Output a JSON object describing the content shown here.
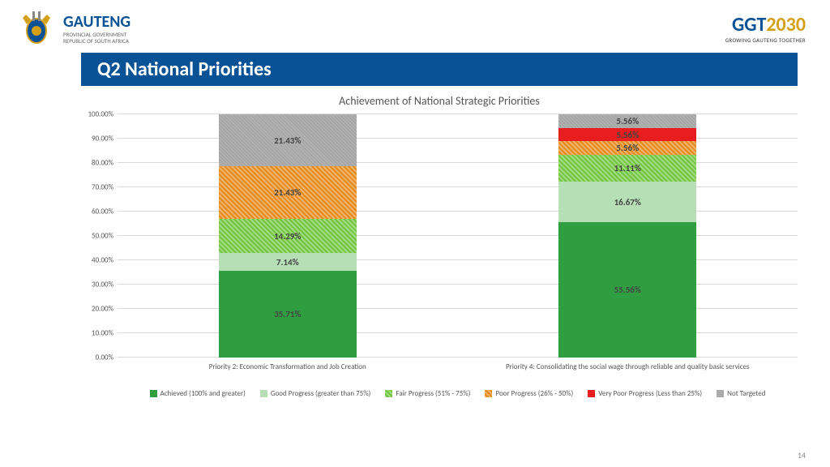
{
  "header": {
    "gauteng": "GAUTENG",
    "gauteng_sub1": "PROVINCIAL GOVERNMENT",
    "gauteng_sub2": "REPUBLIC OF SOUTH AFRICA",
    "ggt_prefix": "GGT",
    "ggt_year": "2030",
    "ggt_sub": "GROWING GAUTENG TOGETHER"
  },
  "title": "Q2 National Priorities",
  "chart": {
    "title": "Achievement of National Strategic Priorities",
    "type": "stacked-bar",
    "ylim": [
      0,
      100
    ],
    "ytick_step": 10,
    "yticks": [
      "0.00%",
      "10.00%",
      "20.00%",
      "30.00%",
      "40.00%",
      "50.00%",
      "60.00%",
      "70.00%",
      "80.00%",
      "90.00%",
      "100.00%"
    ],
    "grid_color": "#d9d9d9",
    "background_color": "#ffffff",
    "categories": [
      "Priority 2: Economic Transformation and Job Creation",
      "Priority 4: Consolidating the social wage through reliable and quality basic services"
    ],
    "series": [
      {
        "name": "Achieved (100%  and greater)",
        "color": "#2e9e41",
        "hatched": false
      },
      {
        "name": "Good Progress (greater than 75%)",
        "color": "#b7dfb5",
        "hatched": false
      },
      {
        "name": "Fair Progress (51% - 75%)",
        "color": "#70c63f",
        "hatched": true
      },
      {
        "name": "Poor Progress (26% - 50%)",
        "color": "#e68a1c",
        "hatched": true
      },
      {
        "name": "Very Poor Progress (Less than 25%)",
        "color": "#e81e1e",
        "hatched": false
      },
      {
        "name": "Not Targeted",
        "color": "#b0b0b0",
        "hatched": "dense"
      }
    ],
    "data": [
      [
        35.71,
        7.14,
        14.29,
        21.43,
        0.0,
        21.43
      ],
      [
        55.56,
        16.67,
        11.11,
        5.56,
        5.56,
        5.56
      ]
    ],
    "labels": [
      [
        "35.71%",
        "7.14%",
        "14.29%",
        "21.43%",
        "",
        "21.43%"
      ],
      [
        "55.56%",
        "16.67%",
        "11.11%",
        "5.56%",
        "5.56%",
        "5.56%"
      ]
    ],
    "label_fontsize": 11,
    "label_color": "#444444",
    "title_fontsize": 14,
    "axis_fontsize": 9
  },
  "page_number": "14"
}
